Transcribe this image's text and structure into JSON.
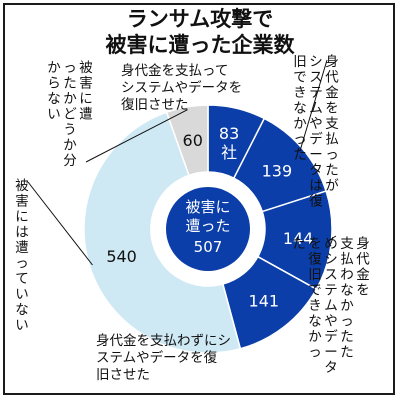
{
  "chart_data": {
    "type": "pie",
    "donut": true,
    "title_lines": [
      "ランサム攻撃で",
      "被害に遭った企業数"
    ],
    "center_label": [
      "被害に",
      "遭った",
      "507"
    ],
    "slices": [
      {
        "label": "身代金を支払ってシステムやデータを復旧させた",
        "value": 83,
        "unit": "社",
        "color": "#0b3ea8",
        "value_color": "#ffffff"
      },
      {
        "label": "身代金を支払ったがシステムやデータは復旧できなかった",
        "value": 139,
        "color": "#0b3ea8",
        "value_color": "#ffffff"
      },
      {
        "label": "身代金を支払わなかったためシステムやデータを復旧できなかった",
        "value": 144,
        "color": "#0b3ea8",
        "value_color": "#ffffff"
      },
      {
        "label": "身代金を支払わずにシステムやデータを復旧させた",
        "value": 141,
        "color": "#0b3ea8",
        "value_color": "#ffffff"
      },
      {
        "label": "被害には遭っていない",
        "value": 540,
        "color": "#cfe9f4",
        "value_color": "#111111"
      },
      {
        "label": "被害に遭ったかどうか分からない",
        "value": 60,
        "color": "#d9d9d9",
        "value_color": "#111111"
      }
    ]
  }
}
